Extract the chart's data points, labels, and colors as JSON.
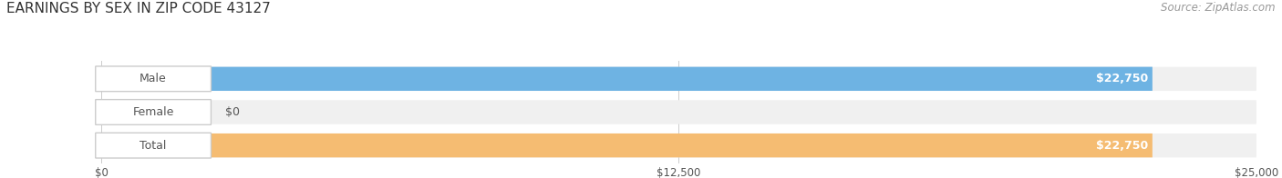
{
  "title": "EARNINGS BY SEX IN ZIP CODE 43127",
  "source": "Source: ZipAtlas.com",
  "categories": [
    "Male",
    "Female",
    "Total"
  ],
  "values": [
    22750,
    0,
    22750
  ],
  "bar_colors": [
    "#6eb3e3",
    "#f4a8c0",
    "#f5bc72"
  ],
  "bar_bg_color": "#f0f0f0",
  "label_bg_color": "#ffffff",
  "xlim": [
    0,
    25000
  ],
  "xtick_values": [
    0,
    12500,
    25000
  ],
  "xtick_labels": [
    "$0",
    "$12,500",
    "$25,000"
  ],
  "value_label_color": "#ffffff",
  "category_label_color": "#555555",
  "title_color": "#333333",
  "source_color": "#999999",
  "background_color": "#ffffff",
  "title_fontsize": 11,
  "source_fontsize": 8.5,
  "tick_fontsize": 8.5,
  "label_fontsize": 9,
  "value_fontsize": 9
}
